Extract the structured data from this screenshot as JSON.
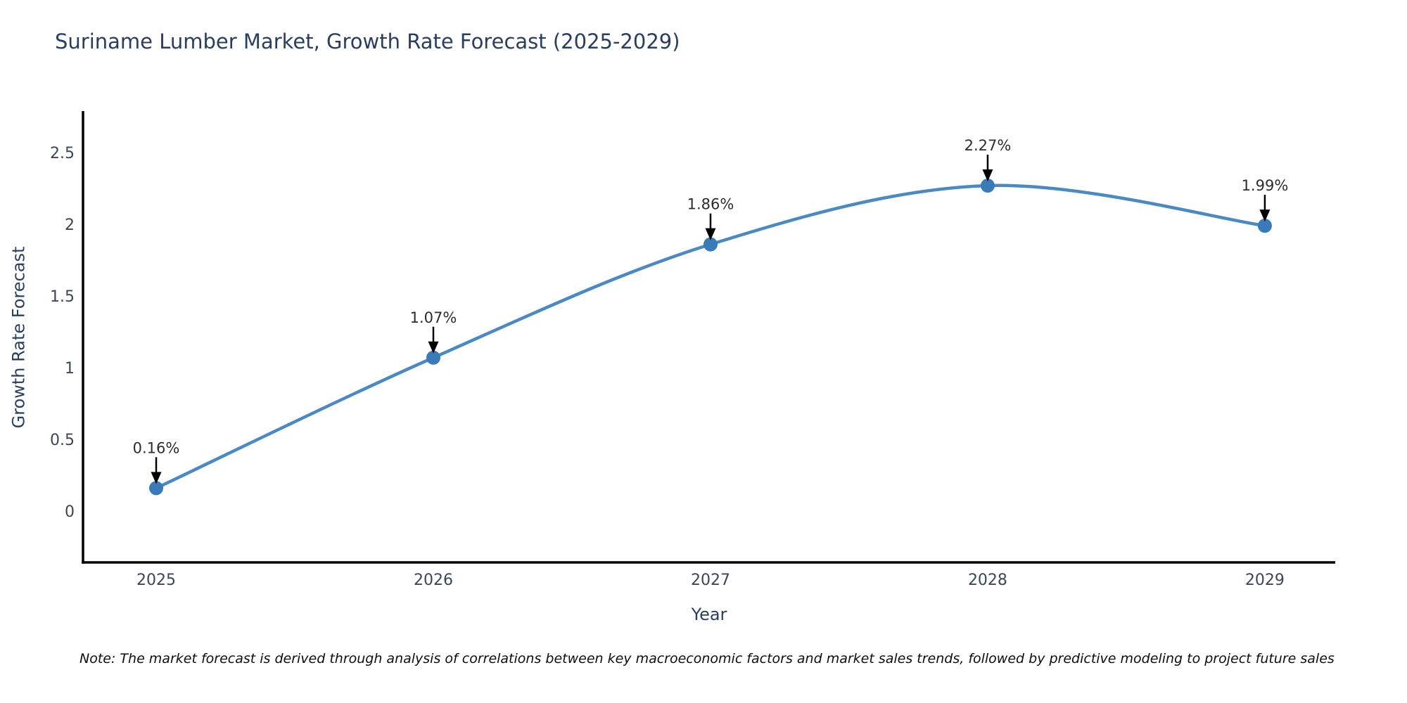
{
  "chart_data": {
    "type": "line",
    "title": "Suriname Lumber Market, Growth Rate Forecast (2025-2029)",
    "xlabel": "Year",
    "ylabel": "Growth Rate Forecast",
    "x": [
      2025,
      2026,
      2027,
      2028,
      2029
    ],
    "values": [
      0.16,
      1.07,
      1.86,
      2.27,
      1.99
    ],
    "point_labels": [
      "0.16%",
      "1.07%",
      "1.86%",
      "2.27%",
      "1.99%"
    ],
    "xticks": [
      "2025",
      "2026",
      "2027",
      "2028",
      "2029"
    ],
    "yticks": [
      "0",
      "0.5",
      "1",
      "1.5",
      "2",
      "2.5"
    ],
    "xlim": [
      2024.736,
      2029.254
    ],
    "ylim": [
      -0.358,
      2.78
    ],
    "line_shape": "spline",
    "grid": false,
    "legend_position": "none",
    "line_color": "#4a89c2",
    "marker_color": "#3a7ab8",
    "axis_color": "#000000",
    "title_color": "#2a3f5f",
    "tick_color": "#3c4657",
    "annotation_color": "#2d2d2d",
    "arrow_color": "#000000"
  },
  "note": "Note: The market forecast is derived through analysis of correlations between key macroeconomic factors and market sales trends, followed by predictive modeling to project future sales"
}
